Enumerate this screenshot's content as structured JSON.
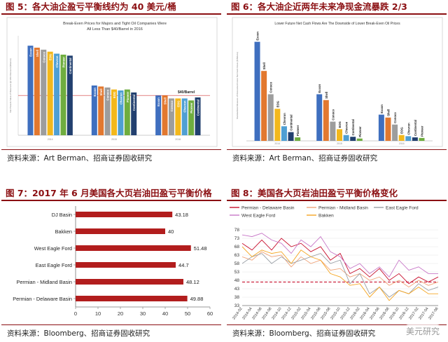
{
  "figures": [
    {
      "title": "图 5：各大油企盈亏平衡线约为 40 美元/桶",
      "source": "资料来源：Art Berman、招商证券固收研究",
      "chart_data": {
        "type": "bar",
        "title": "Break-Even Prices for Majors and Tight Oil Companies Were All Less Than $40/Barrel in 2016",
        "annotation": "$40/Barrel",
        "ylabel": "Net Present Value of Reserves @ 10% Discount ($/barrel)",
        "companies": [
          "Exxon",
          "Shell",
          "Conoco",
          "EOG",
          "Chevron",
          "Pioneer",
          "Continental"
        ],
        "colors": [
          "#3f6fbf",
          "#e2782f",
          "#9d9d9d",
          "#f3b81c",
          "#4f9fd3",
          "#6fad3f",
          "#22406f"
        ],
        "groups": [
          {
            "name": "2014",
            "values": [
              90,
              88,
              86,
              84,
              82,
              81,
              80
            ]
          },
          {
            "name": "2015",
            "values": [
              50,
              49,
              48,
              46,
              45,
              46,
              43
            ]
          },
          {
            "name": "2016",
            "values": [
              40,
              40,
              37,
              37,
              37,
              35,
              38
            ]
          }
        ],
        "ylim": [
          0,
          100
        ],
        "reference_line": 40
      }
    },
    {
      "title": "图 6：各大油企近两年未来净现金流暴跌 2/3",
      "source": "资料来源：Art Berman、招商证券固收研究",
      "chart_data": {
        "type": "bar",
        "title": "Lower Future Net Cash Flows Are The Downside of Lower Break-Even Oil Prices",
        "ylabel": "Standardized Measure of Discounted Future Net Cash Flows ($ Billions)",
        "companies": [
          "Exxon",
          "Shell",
          "Conoco",
          "EOG",
          "Chevron",
          "Continental",
          "Pioneer"
        ],
        "colors": [
          "#3f6fbf",
          "#e2782f",
          "#9d9d9d",
          "#f3b81c",
          "#4f9fd3",
          "#22406f",
          "#6fad3f"
        ],
        "groups": [
          {
            "name": "2014",
            "values": [
              170,
              120,
              80,
              55,
              25,
              15,
              6
            ]
          },
          {
            "name": "2015",
            "values": [
              80,
              70,
              33,
              20,
              10,
              7,
              4
            ]
          },
          {
            "name": "2016",
            "values": [
              45,
              40,
              28,
              10,
              8,
              6,
              5
            ]
          }
        ],
        "ylim": [
          0,
          190
        ]
      }
    },
    {
      "title": "图 7：2017 年 6 月美国各大页岩油田盈亏平衡价格",
      "source": "资料来源：Bloomberg、招商证券固收研究",
      "chart_data": {
        "type": "bar",
        "orientation": "horizontal",
        "categories": [
          "DJ Basin",
          "Bakken",
          "West Eagle Ford",
          "East Eagle Ford",
          "Permian - Midland Basin",
          "Permian - Delaware Basin"
        ],
        "values": [
          43.18,
          40,
          51.48,
          44.7,
          48.12,
          49.88
        ],
        "labels": [
          "43.18",
          "40",
          "51.48",
          "44.7",
          "48.12",
          "49.88"
        ],
        "xlim": [
          0,
          60
        ],
        "xticks": [
          "0",
          "10",
          "20",
          "30",
          "40",
          "50",
          "60"
        ],
        "color": "#b21d1d"
      }
    },
    {
      "title": "图 8：美国各大页岩油田盈亏平衡价格变化",
      "source": "资料来源：Bloomberg、招商证券固收研究",
      "watermark": "美元研究",
      "chart_data": {
        "type": "line",
        "yticks": [
          "78",
          "73",
          "68",
          "63",
          "58",
          "53",
          "48",
          "43",
          "38",
          "33"
        ],
        "ylim": [
          33,
          78
        ],
        "x": [
          "2014-02",
          "2014-04",
          "2014-06",
          "2014-08",
          "2014-10",
          "2014-12",
          "2015-02",
          "2015-04",
          "2015-06",
          "2015-08",
          "2015-10",
          "2015-12",
          "2016-02",
          "2016-04",
          "2016-06",
          "2016-08",
          "2016-10",
          "2016-12",
          "2017-02",
          "2017-04",
          "2017-06"
        ],
        "xlabels": [
          "2014-02",
          "2014-04",
          "2014-06",
          "2014-08",
          "2014-10",
          "2014-12",
          "2015-02",
          "2015-04",
          "2015-06",
          "2015-08",
          "2015-10",
          "2015-12",
          "2016-02",
          "2016-04",
          "2016-06",
          "2016-08",
          "2016-10",
          "2016-12",
          "2017-02",
          "2017-04",
          "2017-06"
        ],
        "reference_line": 47,
        "series": [
          {
            "name": "Permian - Delaware Basin",
            "color": "#c8102e",
            "values": [
              70,
              66,
              72,
              66,
              73,
              68,
              70,
              65,
              68,
              60,
              64,
              52,
              55,
              50,
              55,
              48,
              52,
              46,
              50,
              47,
              50
            ]
          },
          {
            "name": "Permian - Midland Basin",
            "color": "#f0a47a",
            "values": [
              62,
              60,
              65,
              62,
              63,
              56,
              62,
              58,
              60,
              54,
              55,
              50,
              52,
              48,
              50,
              45,
              48,
              44,
              48,
              45,
              47
            ]
          },
          {
            "name": "East Eagle Ford",
            "color": "#9aa0a6",
            "values": [
              58,
              62,
              64,
              58,
              62,
              58,
              60,
              62,
              64,
              58,
              60,
              46,
              52,
              40,
              44,
              38,
              42,
              40,
              46,
              42,
              44
            ]
          },
          {
            "name": "West Eagle Ford",
            "color": "#c879c8",
            "values": [
              75,
              74,
              76,
              72,
              70,
              64,
              72,
              68,
              74,
              65,
              62,
              55,
              58,
              52,
              56,
              50,
              60,
              54,
              56,
              52,
              52
            ]
          },
          {
            "name": "Bakken",
            "color": "#f5a623",
            "values": [
              68,
              62,
              66,
              64,
              65,
              58,
              66,
              62,
              60,
              52,
              50,
              45,
              46,
              38,
              44,
              36,
              42,
              40,
              44,
              40,
              40
            ]
          }
        ]
      }
    }
  ]
}
